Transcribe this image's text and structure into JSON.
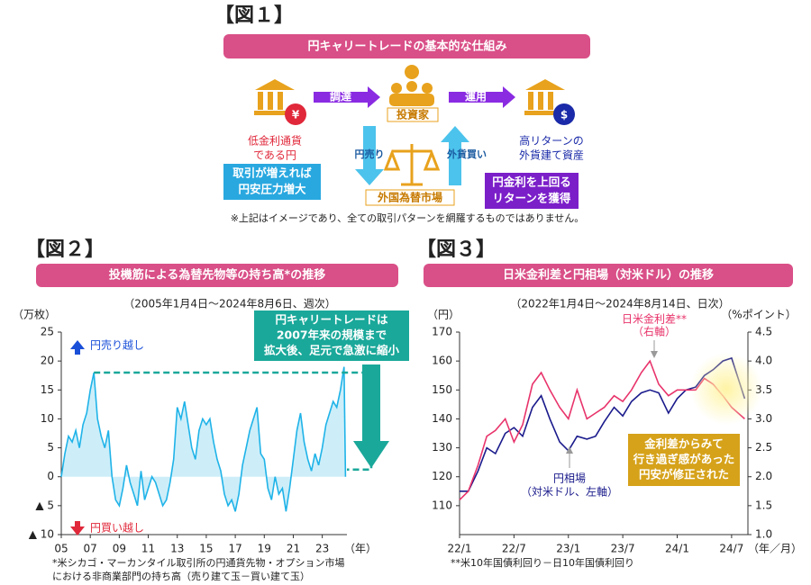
{
  "figure1": {
    "header": "【図１】",
    "title": "円キャリートレードの基本的な仕組み",
    "procure": "調達",
    "investor": "投資家",
    "invest": "運用",
    "low_rate": [
      "低金利通貨",
      "である円"
    ],
    "high_return": [
      "高リターンの",
      "外貨建て資産"
    ],
    "sell_yen": "円売り",
    "buy_fx": "外貨買い",
    "pressure": [
      "取引が増えれば",
      "円安圧力増大"
    ],
    "market": "外国為替市場",
    "gain": [
      "円金利を上回る",
      "リターンを獲得"
    ],
    "note": "※上記はイメージであり、全ての取引パターンを網羅するものではありません。"
  },
  "chart_data": [
    {
      "type": "line",
      "header": "【図２】",
      "title": "投機筋による為替先物等の持ち高*の推移",
      "subtitle": "（2005年1月4日～2024年8月6日、週次）",
      "y_label": "（万枚）",
      "x_unit": "（年）",
      "annotations": {
        "sell": "円売り越し",
        "buy": "円買い越し",
        "callout": [
          "円キャリートレードは",
          "2007年来の規模まで",
          "拡大後、足元で急激に縮小"
        ]
      },
      "note": [
        "*米シカゴ・マーカンタイル取引所の円通貨先物・オプション市場",
        "における非商業部門の持ち高（売り建て玉－買い建て玉）"
      ],
      "x": [
        2005,
        2005.25,
        2005.5,
        2005.75,
        2006,
        2006.25,
        2006.5,
        2006.75,
        2007,
        2007.25,
        2007.5,
        2007.75,
        2008,
        2008.25,
        2008.5,
        2008.75,
        2009,
        2009.25,
        2009.5,
        2009.75,
        2010,
        2010.25,
        2010.5,
        2010.75,
        2011,
        2011.25,
        2011.5,
        2011.75,
        2012,
        2012.25,
        2012.5,
        2012.75,
        2013,
        2013.25,
        2013.5,
        2013.75,
        2014,
        2014.25,
        2014.5,
        2014.75,
        2015,
        2015.25,
        2015.5,
        2015.75,
        2016,
        2016.25,
        2016.5,
        2016.75,
        2017,
        2017.25,
        2017.5,
        2017.75,
        2018,
        2018.25,
        2018.5,
        2018.75,
        2019,
        2019.25,
        2019.5,
        2019.75,
        2020,
        2020.25,
        2020.5,
        2020.75,
        2021,
        2021.25,
        2021.5,
        2021.75,
        2022,
        2022.25,
        2022.5,
        2022.75,
        2023,
        2023.25,
        2023.5,
        2023.75,
        2024,
        2024.25,
        2024.5,
        2024.6
      ],
      "series": [
        {
          "name": "投機筋の持ち高",
          "color": "#1fb3e8",
          "area": "#cdeef9",
          "values": [
            0,
            4,
            7,
            6,
            8,
            5,
            9,
            11,
            15,
            18,
            10,
            7,
            5,
            8,
            0,
            -4,
            -5,
            -2,
            2,
            -1,
            -3,
            -5,
            1,
            -4,
            -2,
            0,
            -1,
            -3,
            -5,
            -4,
            -1,
            3,
            12,
            10,
            13,
            9,
            5,
            3,
            8,
            10,
            9,
            10,
            6,
            3,
            1,
            -3,
            -5,
            -4,
            -6,
            -3,
            2,
            5,
            8,
            10,
            12,
            4,
            3,
            -2,
            -4,
            0,
            -3,
            -2,
            -6,
            -2,
            3,
            8,
            11,
            6,
            3,
            1,
            4,
            2,
            5,
            9,
            11,
            13,
            12,
            15,
            19,
            0
          ]
        }
      ],
      "xlim": [
        2005,
        2024.7
      ],
      "xticks": [
        {
          "value": 2005,
          "label": "05"
        },
        {
          "value": 2007,
          "label": "07"
        },
        {
          "value": 2009,
          "label": "09"
        },
        {
          "value": 2011,
          "label": "11"
        },
        {
          "value": 2013,
          "label": "13"
        },
        {
          "value": 2015,
          "label": "15"
        },
        {
          "value": 2017,
          "label": "17"
        },
        {
          "value": 2019,
          "label": "19"
        },
        {
          "value": 2021,
          "label": "21"
        },
        {
          "value": 2023,
          "label": "23"
        }
      ],
      "ylim": [
        -10,
        25
      ],
      "yticks": [
        25,
        20,
        15,
        10,
        5,
        0,
        {
          "value": -5,
          "label": "▲ 5"
        },
        {
          "value": -10,
          "label": "▲ 10"
        }
      ]
    },
    {
      "type": "line",
      "header": "【図３】",
      "title": "日米金利差と円相場（対米ドル）の推移",
      "subtitle": "（2022年1月4日～2024年8月14日、日次）",
      "y_label": "（円）",
      "y2_label": "（%ポイント）",
      "x_unit": "（年／月）",
      "annotations": {
        "spread": "日米金利差**",
        "spread_axis": "（右軸）",
        "yen": "円相場",
        "yen_axis": "（対米ドル、左軸）",
        "callout": [
          "金利差からみて",
          "行き過ぎ感があった",
          "円安が修正された"
        ]
      },
      "note": [
        "**米10年国債利回り－日10年国債利回り"
      ],
      "x": [
        2022,
        2022.08,
        2022.17,
        2022.25,
        2022.33,
        2022.42,
        2022.5,
        2022.58,
        2022.67,
        2022.75,
        2022.83,
        2022.92,
        2023,
        2023.08,
        2023.17,
        2023.25,
        2023.33,
        2023.42,
        2023.5,
        2023.58,
        2023.67,
        2023.75,
        2023.83,
        2023.92,
        2024,
        2024.08,
        2024.17,
        2024.25,
        2024.33,
        2024.42,
        2024.5,
        2024.62
      ],
      "series": [
        {
          "name": "円相場",
          "color": "#1a1a8c",
          "values": [
            115,
            115,
            122,
            130,
            128,
            135,
            137,
            134,
            144,
            148,
            140,
            132,
            129,
            134,
            133,
            134,
            139,
            144,
            141,
            146,
            149,
            150,
            149,
            142,
            147,
            150,
            151,
            155,
            157,
            160,
            161,
            147
          ]
        },
        {
          "name": "日米金利差",
          "color": "#e8336b",
          "axis": "y2",
          "values": [
            1.6,
            1.75,
            2.2,
            2.7,
            2.8,
            3.0,
            2.6,
            2.9,
            3.6,
            3.8,
            3.5,
            3.2,
            3.0,
            3.5,
            3.0,
            3.1,
            3.2,
            3.4,
            3.3,
            3.5,
            3.8,
            4.0,
            3.6,
            3.4,
            3.5,
            3.5,
            3.5,
            3.7,
            3.6,
            3.4,
            3.2,
            3.0
          ]
        }
      ],
      "xlim": [
        2022,
        2024.65
      ],
      "xticks": [
        {
          "value": 2022,
          "label": "22/1"
        },
        {
          "value": 2022.5,
          "label": "22/7"
        },
        {
          "value": 2023,
          "label": "23/1"
        },
        {
          "value": 2023.5,
          "label": "23/7"
        },
        {
          "value": 2024,
          "label": "24/1"
        },
        {
          "value": 2024.5,
          "label": "24/7"
        }
      ],
      "ylim": [
        100,
        170
      ],
      "yticks": [
        170,
        160,
        150,
        140,
        130,
        120,
        110
      ],
      "y2lim": [
        1.0,
        4.5
      ],
      "y2ticks": [
        {
          "value": 4.5,
          "label": "4.5"
        },
        {
          "value": 4.0,
          "label": "4.0"
        },
        3.5,
        {
          "value": 3.0,
          "label": "3.0"
        },
        2.5,
        {
          "value": 2.0,
          "label": "2.0"
        },
        1.5,
        {
          "value": 1.0,
          "label": "1.0"
        }
      ]
    }
  ]
}
